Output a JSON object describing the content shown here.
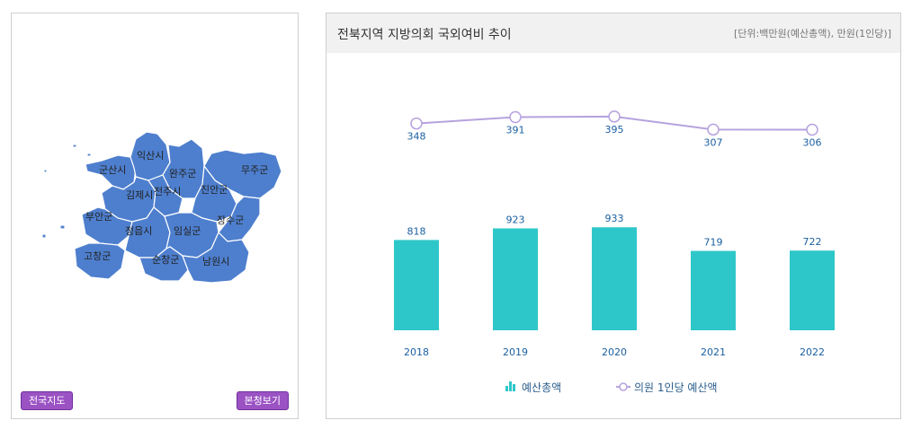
{
  "map": {
    "regions": [
      "익산시",
      "군산시",
      "완주군",
      "무주군",
      "김제시",
      "전주시",
      "진안군",
      "부안군",
      "장수군",
      "정읍시",
      "임실군",
      "고창군",
      "순창군",
      "남원시"
    ],
    "buttons": {
      "national_map": "전국지도",
      "main_view": "본청보기"
    },
    "region_color": "#4e7fce"
  },
  "chart": {
    "title": "전북지역 지방의회 국외여비 추이",
    "unit": "[단위:백만원(예산총액), 만원(1인당)]"
  },
  "chart_data": {
    "type": "bar",
    "categories": [
      "2018",
      "2019",
      "2020",
      "2021",
      "2022"
    ],
    "series": [
      {
        "name": "예산총액",
        "type": "bar",
        "values": [
          818,
          923,
          933,
          719,
          722
        ],
        "color": "#2ec7c9"
      },
      {
        "name": "의원 1인당 예산액",
        "type": "line",
        "values": [
          348,
          391,
          395,
          307,
          306
        ],
        "color": "#b6a2de"
      }
    ],
    "bar_ylim": [
      0,
      1000
    ],
    "line_ylim": [
      0,
      420
    ],
    "legend": [
      "예산총액",
      "의원 1인당 예산액"
    ]
  }
}
